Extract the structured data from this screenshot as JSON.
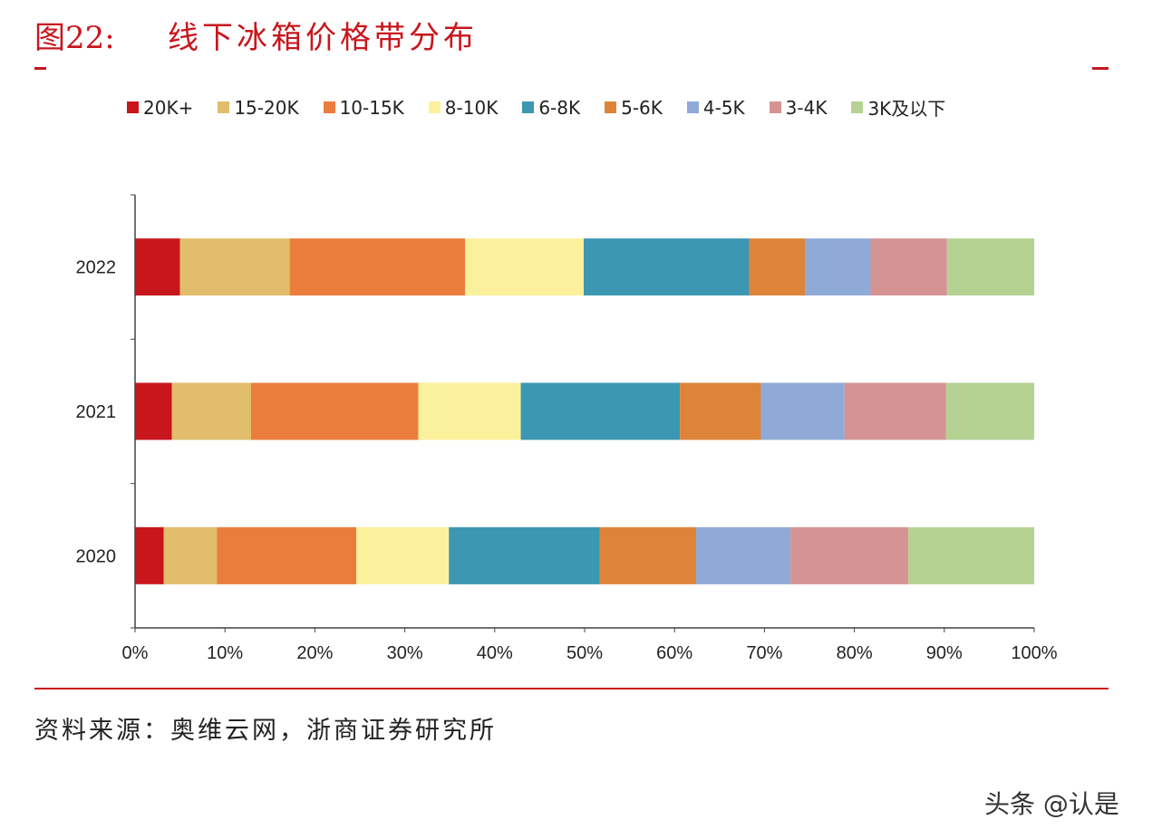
{
  "title": {
    "number": "图22:",
    "text": "线下冰箱价格带分布"
  },
  "source": "资料来源：奥维云网，浙商证券研究所",
  "watermark": "头条 @认是",
  "chart_data": {
    "type": "bar",
    "orientation": "horizontal",
    "stacked": "percent",
    "categories": [
      "2022",
      "2021",
      "2020"
    ],
    "xlim": [
      0,
      100
    ],
    "xticks": [
      "0%",
      "10%",
      "20%",
      "30%",
      "40%",
      "50%",
      "60%",
      "70%",
      "80%",
      "90%",
      "100%"
    ],
    "legend_position": "top",
    "grid": false,
    "series": [
      {
        "name": "20K+",
        "color": "#c8161d",
        "values": [
          5.0,
          4.1,
          3.2
        ]
      },
      {
        "name": "15-20K",
        "color": "#e2bd6c",
        "values": [
          12.2,
          8.8,
          5.9
        ]
      },
      {
        "name": "10-15K",
        "color": "#ea7d3c",
        "values": [
          19.5,
          18.6,
          15.5
        ]
      },
      {
        "name": "8-10K",
        "color": "#fbf19c",
        "values": [
          13.2,
          11.4,
          10.3
        ]
      },
      {
        "name": "6-8K",
        "color": "#3c97b3",
        "values": [
          18.4,
          17.7,
          16.8
        ]
      },
      {
        "name": "5-6K",
        "color": "#de8438",
        "values": [
          6.2,
          9.0,
          10.7
        ]
      },
      {
        "name": "4-5K",
        "color": "#8faad6",
        "values": [
          7.3,
          9.3,
          10.5
        ]
      },
      {
        "name": "3-4K",
        "color": "#d69393",
        "values": [
          8.5,
          11.3,
          13.1
        ]
      },
      {
        "name": "3K及以下",
        "color": "#b6d293",
        "values": [
          9.7,
          9.8,
          14.0
        ]
      }
    ]
  }
}
